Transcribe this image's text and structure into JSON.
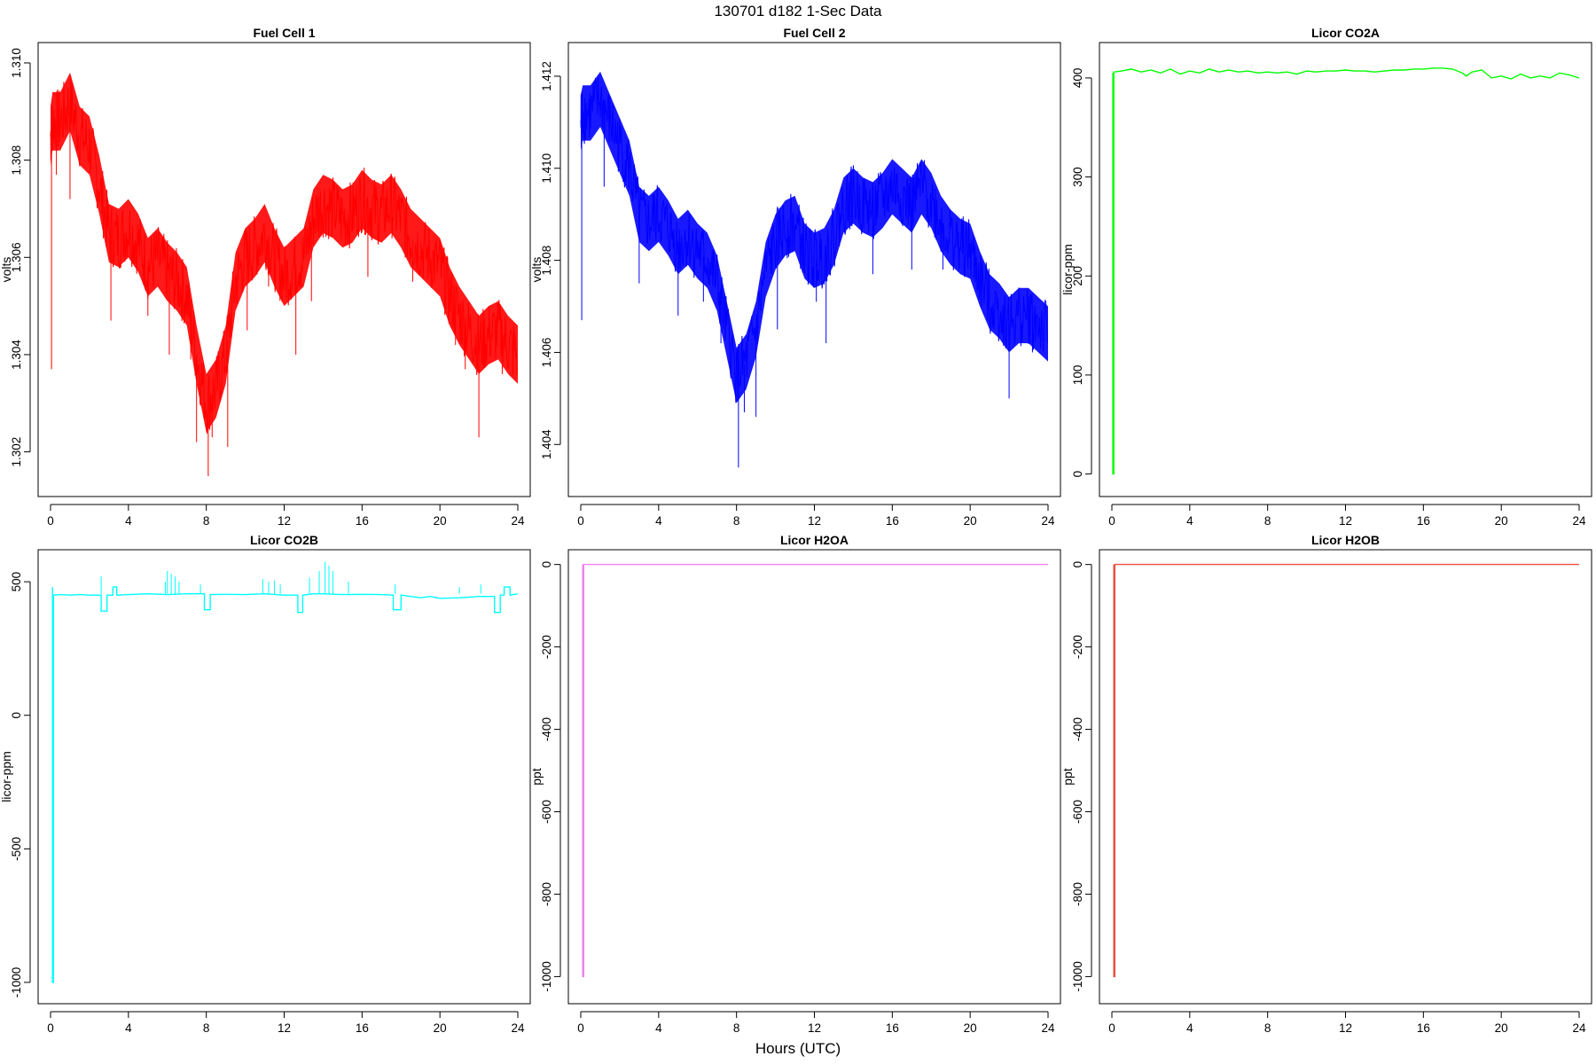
{
  "figure": {
    "title": "130701   d182   1-Sec Data",
    "xlabel": "Hours (UTC)"
  },
  "chart_data": [
    {
      "type": "line",
      "title": "Fuel Cell 1",
      "ylabel": "volts",
      "color": "#ff0000",
      "xlim": [
        0,
        24
      ],
      "ylim": [
        1.3013,
        1.3102
      ],
      "xticks": [
        0,
        4,
        8,
        12,
        16,
        20,
        24
      ],
      "yticks": [
        1.302,
        1.304,
        1.306,
        1.308,
        1.31
      ],
      "ytick_labels": [
        "1.302",
        "1.304",
        "1.306",
        "1.308",
        "1.310"
      ],
      "noise": 0.0006,
      "x": [
        0,
        0.1,
        0.5,
        1,
        1.5,
        2,
        2.5,
        3,
        3.5,
        4,
        4.5,
        5,
        5.5,
        6,
        6.5,
        7,
        7.5,
        8,
        8.5,
        9,
        9.5,
        10,
        10.5,
        11,
        11.5,
        12,
        12.5,
        13,
        13.5,
        14,
        14.5,
        15,
        15.5,
        16,
        16.5,
        17,
        17.5,
        18,
        18.5,
        19,
        19.5,
        20,
        20.5,
        21,
        21.5,
        22,
        22.5,
        23,
        23.5,
        24
      ],
      "y": [
        1.3085,
        1.3088,
        1.3088,
        1.3092,
        1.3085,
        1.3083,
        1.3075,
        1.3065,
        1.3064,
        1.3066,
        1.3063,
        1.3058,
        1.306,
        1.3057,
        1.3055,
        1.3052,
        1.304,
        1.303,
        1.3033,
        1.304,
        1.3055,
        1.306,
        1.3062,
        1.3065,
        1.306,
        1.3056,
        1.3058,
        1.306,
        1.3068,
        1.3071,
        1.307,
        1.3068,
        1.3069,
        1.3072,
        1.307,
        1.3069,
        1.3071,
        1.3068,
        1.3064,
        1.3062,
        1.306,
        1.3058,
        1.3052,
        1.3048,
        1.3045,
        1.3042,
        1.3044,
        1.3045,
        1.3042,
        1.304
      ],
      "spikes": [
        {
          "x": 0.05,
          "y": 1.3037
        },
        {
          "x": 0.3,
          "y": 1.3077
        },
        {
          "x": 1.0,
          "y": 1.3072
        },
        {
          "x": 3.1,
          "y": 1.3047
        },
        {
          "x": 5.0,
          "y": 1.3048
        },
        {
          "x": 6.1,
          "y": 1.304
        },
        {
          "x": 7.2,
          "y": 1.3039
        },
        {
          "x": 7.5,
          "y": 1.3022
        },
        {
          "x": 8.1,
          "y": 1.3015
        },
        {
          "x": 8.3,
          "y": 1.3023
        },
        {
          "x": 9.1,
          "y": 1.3021
        },
        {
          "x": 10.1,
          "y": 1.3045
        },
        {
          "x": 11.2,
          "y": 1.3054
        },
        {
          "x": 12.6,
          "y": 1.304
        },
        {
          "x": 13.4,
          "y": 1.3051
        },
        {
          "x": 16.3,
          "y": 1.3056
        },
        {
          "x": 18.6,
          "y": 1.3055
        },
        {
          "x": 20.8,
          "y": 1.3042
        },
        {
          "x": 21.3,
          "y": 1.3037
        },
        {
          "x": 22.0,
          "y": 1.3023
        },
        {
          "x": 23.2,
          "y": 1.3036
        }
      ]
    },
    {
      "type": "line",
      "title": "Fuel Cell 2",
      "ylabel": "volts",
      "color": "#0000ff",
      "xlim": [
        0,
        24
      ],
      "ylim": [
        1.4031,
        1.4125
      ],
      "xticks": [
        0,
        4,
        8,
        12,
        16,
        20,
        24
      ],
      "yticks": [
        1.404,
        1.406,
        1.408,
        1.41,
        1.412
      ],
      "ytick_labels": [
        "1.404",
        "1.406",
        "1.408",
        "1.410",
        "1.412"
      ],
      "noise": 0.0006,
      "x": [
        0,
        0.1,
        0.5,
        1,
        1.5,
        2,
        2.5,
        3,
        3.5,
        4,
        4.5,
        5,
        5.5,
        6,
        6.5,
        7,
        7.5,
        8,
        8.5,
        9,
        9.5,
        10,
        10.5,
        11,
        11.5,
        12,
        12.5,
        13,
        13.5,
        14,
        14.5,
        15,
        15.5,
        16,
        16.5,
        17,
        17.5,
        18,
        18.5,
        19,
        19.5,
        20,
        20.5,
        21,
        21.5,
        22,
        22.5,
        23,
        23.5,
        24
      ],
      "y": [
        1.411,
        1.4112,
        1.4112,
        1.4115,
        1.411,
        1.4105,
        1.41,
        1.409,
        1.4088,
        1.409,
        1.4087,
        1.4083,
        1.4085,
        1.4082,
        1.408,
        1.4075,
        1.4065,
        1.4055,
        1.4058,
        1.4065,
        1.4078,
        1.4084,
        1.4087,
        1.4088,
        1.4082,
        1.408,
        1.4081,
        1.4085,
        1.4092,
        1.4094,
        1.4092,
        1.4091,
        1.4093,
        1.4096,
        1.4094,
        1.4092,
        1.4096,
        1.4093,
        1.4088,
        1.4085,
        1.4083,
        1.4082,
        1.4076,
        1.4071,
        1.4069,
        1.4066,
        1.4068,
        1.4068,
        1.4066,
        1.4064
      ],
      "spikes": [
        {
          "x": 0.05,
          "y": 1.4067
        },
        {
          "x": 1.2,
          "y": 1.4096
        },
        {
          "x": 3.0,
          "y": 1.4075
        },
        {
          "x": 5.0,
          "y": 1.4068
        },
        {
          "x": 6.3,
          "y": 1.4071
        },
        {
          "x": 7.2,
          "y": 1.4062
        },
        {
          "x": 8.1,
          "y": 1.4035
        },
        {
          "x": 8.4,
          "y": 1.4047
        },
        {
          "x": 9.0,
          "y": 1.4046
        },
        {
          "x": 10.1,
          "y": 1.4065
        },
        {
          "x": 12.1,
          "y": 1.4071
        },
        {
          "x": 12.6,
          "y": 1.4062
        },
        {
          "x": 15.0,
          "y": 1.4077
        },
        {
          "x": 17.0,
          "y": 1.4078
        },
        {
          "x": 18.6,
          "y": 1.4078
        },
        {
          "x": 20.2,
          "y": 1.4076
        },
        {
          "x": 21.6,
          "y": 1.4064
        },
        {
          "x": 22.0,
          "y": 1.405
        },
        {
          "x": 23.2,
          "y": 1.406
        }
      ]
    },
    {
      "type": "line",
      "title": "Licor CO2A",
      "ylabel": "licor-ppm",
      "color": "#00ff00",
      "xlim": [
        0,
        24
      ],
      "ylim": [
        -12,
        425
      ],
      "xticks": [
        0,
        4,
        8,
        12,
        16,
        20,
        24
      ],
      "yticks": [
        0,
        100,
        200,
        300,
        400
      ],
      "ytick_labels": [
        "0",
        "100",
        "200",
        "300",
        "400"
      ],
      "noise": 0,
      "x": [
        0.05,
        0.05,
        0.1,
        0.1,
        0.5,
        1,
        1.5,
        2,
        2.5,
        3,
        3.5,
        4,
        4.5,
        5,
        5.5,
        6,
        6.5,
        7,
        7.5,
        8,
        8.5,
        9,
        9.5,
        10,
        10.5,
        11,
        11.5,
        12,
        12.5,
        13,
        13.5,
        14,
        14.5,
        15,
        15.5,
        16,
        16.5,
        17,
        17.5,
        18,
        18.2,
        18.5,
        19,
        19.5,
        20,
        20.5,
        21,
        21.5,
        22,
        22.5,
        23,
        23.5,
        24
      ],
      "y": [
        405,
        0,
        0,
        406,
        407,
        409,
        406,
        408,
        405,
        409,
        404,
        407,
        405,
        409,
        406,
        408,
        406,
        407,
        405,
        406,
        405,
        406,
        404,
        407,
        406,
        407,
        407,
        408,
        407,
        407,
        406,
        407,
        408,
        408,
        409,
        409,
        410,
        410,
        409,
        405,
        402,
        406,
        408,
        400,
        402,
        399,
        404,
        400,
        402,
        400,
        405,
        403,
        400
      ],
      "spikes": []
    },
    {
      "type": "line",
      "title": "Licor CO2B",
      "ylabel": "licor-ppm",
      "color": "#00ffff",
      "xlim": [
        0,
        24
      ],
      "ylim": [
        -1040,
        580
      ],
      "xticks": [
        0,
        4,
        8,
        12,
        16,
        20,
        24
      ],
      "yticks": [
        -1000,
        -500,
        0,
        500
      ],
      "ytick_labels": [
        "-1000",
        "-500",
        "0",
        "500"
      ],
      "noise": 0,
      "x": [
        0.1,
        0.1,
        0.15,
        0.15,
        0.5,
        1,
        1.5,
        2,
        2.6,
        2.6,
        2.9,
        2.9,
        3.2,
        3.2,
        3.4,
        3.4,
        4,
        5,
        6,
        7,
        7.9,
        7.9,
        8.2,
        8.2,
        9,
        10,
        11,
        12,
        12.7,
        12.7,
        12.95,
        12.95,
        13.5,
        14,
        15,
        16,
        17,
        17.6,
        17.6,
        18,
        18,
        19,
        19.5,
        20,
        21,
        22,
        22.8,
        22.8,
        23.1,
        23.1,
        23.3,
        23.3,
        23.6,
        23.6,
        24
      ],
      "y": [
        480,
        -1000,
        -1000,
        450,
        452,
        450,
        452,
        450,
        450,
        390,
        390,
        450,
        450,
        480,
        480,
        450,
        452,
        455,
        452,
        455,
        455,
        395,
        395,
        452,
        453,
        452,
        455,
        450,
        450,
        385,
        385,
        450,
        455,
        455,
        452,
        453,
        452,
        450,
        395,
        395,
        450,
        440,
        445,
        438,
        440,
        445,
        445,
        385,
        385,
        450,
        450,
        480,
        480,
        450,
        455
      ],
      "spikes": [
        {
          "x": 2.6,
          "y": 520
        },
        {
          "x": 5.9,
          "y": 500
        },
        {
          "x": 6.0,
          "y": 540
        },
        {
          "x": 6.2,
          "y": 530
        },
        {
          "x": 6.4,
          "y": 520
        },
        {
          "x": 6.6,
          "y": 500
        },
        {
          "x": 7.7,
          "y": 490
        },
        {
          "x": 10.9,
          "y": 510
        },
        {
          "x": 11.2,
          "y": 500
        },
        {
          "x": 11.5,
          "y": 505
        },
        {
          "x": 11.8,
          "y": 490
        },
        {
          "x": 13.3,
          "y": 515
        },
        {
          "x": 13.8,
          "y": 540
        },
        {
          "x": 14.1,
          "y": 575
        },
        {
          "x": 14.3,
          "y": 560
        },
        {
          "x": 14.5,
          "y": 540
        },
        {
          "x": 15.3,
          "y": 500
        },
        {
          "x": 17.7,
          "y": 490
        },
        {
          "x": 21.0,
          "y": 480
        },
        {
          "x": 22.1,
          "y": 490
        },
        {
          "x": 23.3,
          "y": 475
        }
      ]
    },
    {
      "type": "line",
      "title": "Licor H2OA",
      "ylabel": "ppt",
      "color": "#ee82ee",
      "xlim": [
        0,
        24
      ],
      "ylim": [
        -1040,
        10
      ],
      "xticks": [
        0,
        4,
        8,
        12,
        16,
        20,
        24
      ],
      "yticks": [
        -1000,
        -800,
        -600,
        -400,
        -200,
        0
      ],
      "ytick_labels": [
        "-1000",
        "-800",
        "-600",
        "-400",
        "-200",
        "0"
      ],
      "noise": 0,
      "x": [
        0.1,
        0.1,
        0.15,
        0.15,
        24
      ],
      "y": [
        0,
        -1000,
        -1000,
        0,
        0
      ],
      "spikes": []
    },
    {
      "type": "line",
      "title": "Licor H2OB",
      "ylabel": "ppt",
      "color": "#e8503c",
      "xlim": [
        0,
        24
      ],
      "ylim": [
        -1040,
        10
      ],
      "xticks": [
        0,
        4,
        8,
        12,
        16,
        20,
        24
      ],
      "yticks": [
        -1000,
        -800,
        -600,
        -400,
        -200,
        0
      ],
      "ytick_labels": [
        "-1000",
        "-800",
        "-600",
        "-400",
        "-200",
        "0"
      ],
      "noise": 0,
      "x": [
        0.1,
        0.1,
        0.15,
        0.15,
        24
      ],
      "y": [
        0,
        -1000,
        -1000,
        0,
        0
      ],
      "spikes": []
    }
  ]
}
